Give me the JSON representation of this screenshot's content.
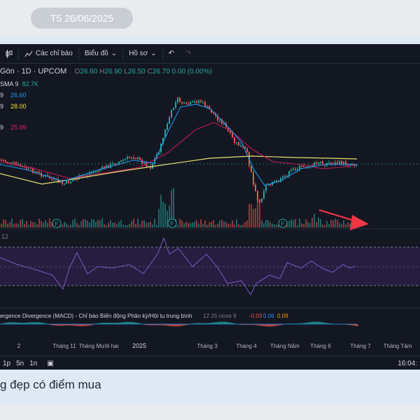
{
  "date_pill": "T5 26/06/2025",
  "toolbar": {
    "indicators": "Các chỉ báo",
    "chart": "Biểu đồ",
    "profile": "Hồ sơ"
  },
  "symbol": {
    "name": "Gòn · 1D · UPCOM",
    "open_label": "O",
    "open": "26.60",
    "high_label": "H",
    "high": "26.90",
    "low_label": "L",
    "low": "26.50",
    "close_label": "C",
    "close": "26.70",
    "change": "0.00 (0.00%)"
  },
  "indicators": [
    {
      "prefix": "SMA 9",
      "value": "82.7K",
      "color": "#26a69a"
    },
    {
      "prefix": "9",
      "value": "26.60",
      "color": "#2196f3"
    },
    {
      "prefix": "9",
      "value": "28.00",
      "color": "#f0e130"
    },
    {
      "prefix": "9",
      "value": "25.99",
      "color": "#e91e63"
    }
  ],
  "rsi": {
    "value": "12"
  },
  "macd": {
    "label": "ergence Divergence (MACD) - Chỉ báo Biến động Phân kỳ/Hội tụ trung bình",
    "params": "12 26 close 9",
    "v1": "-0.03",
    "v2": "0.06",
    "v3": "0.09"
  },
  "x_axis": [
    "2",
    "Tháng 11",
    "Tháng Mười hai",
    "2025",
    "Tháng 3",
    "Tháng 4",
    "Tháng Năm",
    "Tháng 6",
    "Tháng 7",
    "Tháng Tám"
  ],
  "timeframes": [
    "1p",
    "5n",
    "1n"
  ],
  "clock": "16:04:",
  "event_marker": "F",
  "caption": "g đẹp có điểm mua",
  "colors": {
    "up": "#26a69a",
    "down": "#ef5350",
    "rsi": "#7e57c2",
    "arrow": "#f23645"
  }
}
